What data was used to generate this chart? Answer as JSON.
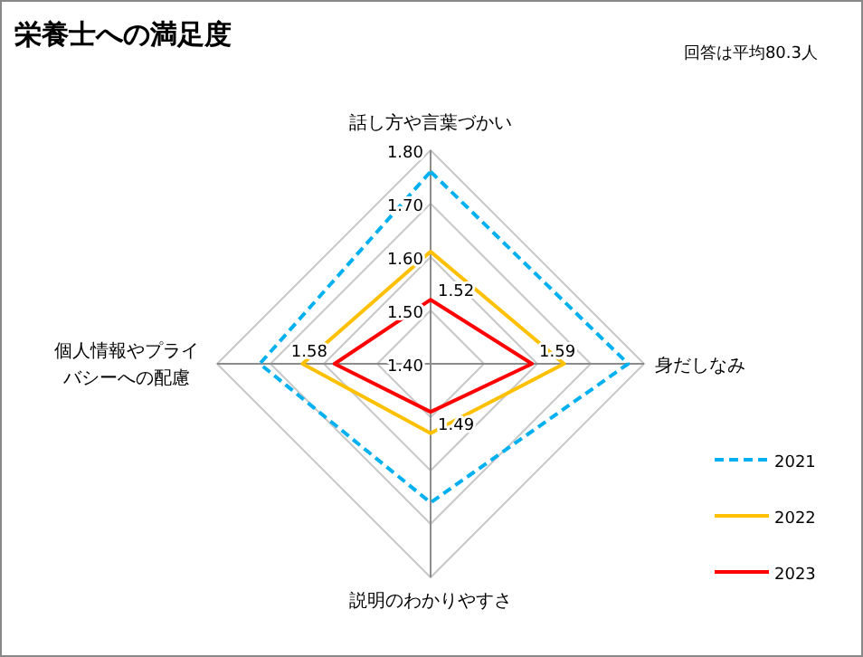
{
  "chart_data": {
    "type": "radar",
    "title": "栄養士への満足度",
    "annotations": [
      "回答は平均80.3人"
    ],
    "categories": [
      "話し方や言葉づかい",
      "身だしなみ",
      "説明のわかりやすさ",
      "個人情報やプライバシーへの配慮"
    ],
    "ylim": [
      1.4,
      1.8
    ],
    "yticks": [
      {
        "value": 1.4,
        "label": "1.40"
      },
      {
        "value": 1.5,
        "label": "1.50"
      },
      {
        "value": 1.6,
        "label": "1.60"
      },
      {
        "value": 1.7,
        "label": "1.70"
      },
      {
        "value": 1.8,
        "label": "1.80"
      }
    ],
    "grid": true,
    "legend": "right",
    "series": [
      {
        "name": "2021",
        "color": "#00b0f0",
        "line_style": "dashed",
        "values": [
          1.76,
          1.77,
          1.66,
          1.72
        ]
      },
      {
        "name": "2022",
        "color": "#ffc000",
        "values": [
          1.61,
          1.65,
          1.53,
          1.64
        ]
      },
      {
        "name": "2023",
        "color": "#ff0000",
        "values": [
          1.52,
          1.59,
          1.49,
          1.58
        ],
        "value_labels": [
          "1.52",
          "1.59",
          "1.49",
          "1.58"
        ]
      }
    ]
  }
}
